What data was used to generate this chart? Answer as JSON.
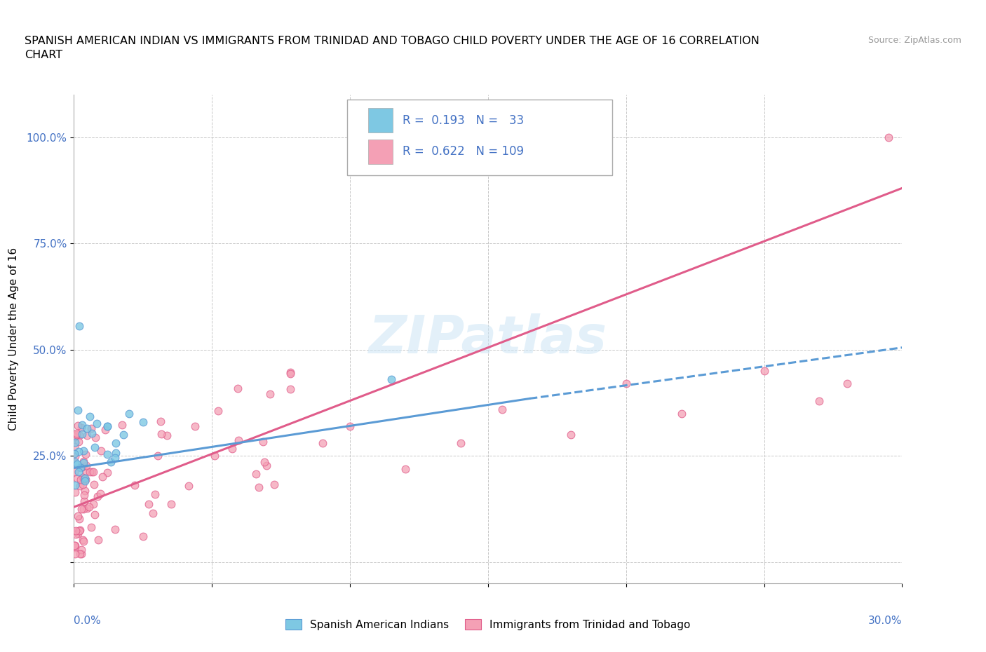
{
  "title": "SPANISH AMERICAN INDIAN VS IMMIGRANTS FROM TRINIDAD AND TOBAGO CHILD POVERTY UNDER THE AGE OF 16 CORRELATION\nCHART",
  "source": "Source: ZipAtlas.com",
  "ylabel": "Child Poverty Under the Age of 16",
  "xlim": [
    0,
    0.3
  ],
  "ylim": [
    -0.05,
    1.1
  ],
  "legend1_label": "Spanish American Indians",
  "legend2_label": "Immigrants from Trinidad and Tobago",
  "R1": 0.193,
  "N1": 33,
  "R2": 0.622,
  "N2": 109,
  "color1": "#7ec8e3",
  "color2": "#f4a0b5",
  "trendline1_color": "#5b9bd5",
  "trendline2_color": "#e05c8a",
  "watermark": "ZIPatlas",
  "ytick_vals": [
    0.0,
    0.25,
    0.5,
    0.75,
    1.0
  ],
  "ytick_labels": [
    "",
    "25.0%",
    "50.0%",
    "75.0%",
    "100.0%"
  ]
}
